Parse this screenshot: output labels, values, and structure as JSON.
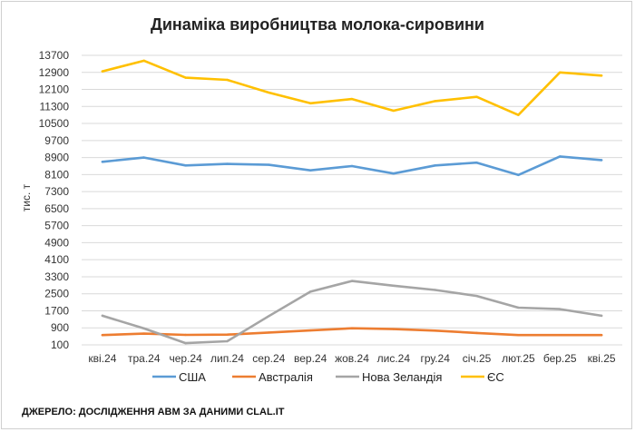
{
  "chart_data": {
    "type": "line",
    "title": "Динаміка виробництва молока-сировини",
    "ylabel": "тис. т",
    "xlabel": "",
    "categories": [
      "кві.24",
      "тра.24",
      "чер.24",
      "лип.24",
      "сер.24",
      "вер.24",
      "жов.24",
      "лис.24",
      "гру.24",
      "січ.25",
      "лют.25",
      "бер.25",
      "кві.25"
    ],
    "yticks": [
      "13700",
      "12900",
      "12100",
      "11300",
      "10500",
      "9700",
      "8900",
      "8100",
      "7300",
      "6500",
      "5700",
      "4900",
      "4100",
      "3300",
      "2500",
      "1700",
      "900",
      "100"
    ],
    "ylim": [
      100,
      13700
    ],
    "grid": "horizontal",
    "legend_position": "bottom",
    "series": [
      {
        "name": "США",
        "color": "#5b9bd5",
        "values": [
          8700,
          8900,
          8530,
          8600,
          8560,
          8300,
          8500,
          8150,
          8530,
          8660,
          8080,
          8950,
          8780
        ]
      },
      {
        "name": "Австралія",
        "color": "#ed7d31",
        "values": [
          560,
          630,
          570,
          580,
          680,
          780,
          880,
          840,
          770,
          660,
          560,
          560,
          560
        ]
      },
      {
        "name": "Нова Зеландія",
        "color": "#a5a5a5",
        "values": [
          1470,
          870,
          180,
          270,
          1450,
          2600,
          3100,
          2880,
          2680,
          2400,
          1850,
          1780,
          1470
        ]
      },
      {
        "name": "ЄС",
        "color": "#ffc000",
        "values": [
          12950,
          13450,
          12650,
          12550,
          11950,
          11450,
          11650,
          11100,
          11550,
          11750,
          10900,
          12900,
          12750
        ]
      }
    ],
    "source": "ДЖЕРЕЛО: ДОСЛІДЖЕННЯ АВМ ЗА ДАНИМИ CLAL.IT"
  }
}
